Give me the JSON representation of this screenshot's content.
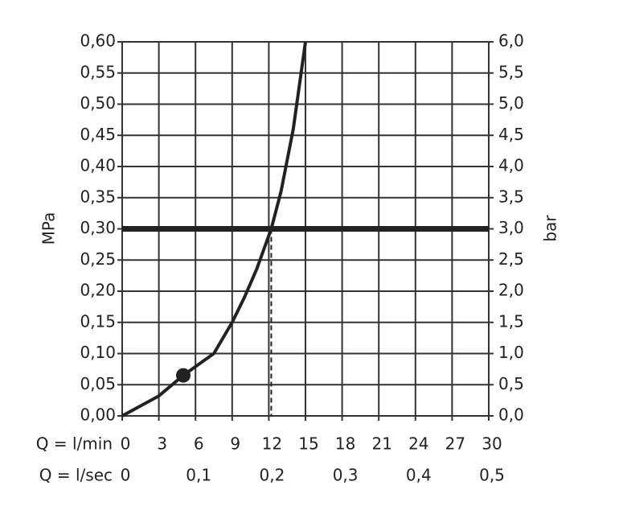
{
  "chart_data": {
    "type": "line",
    "ylabel": "MPa",
    "y2label": "bar",
    "xlabel": "Q = l/min",
    "x2label": "Q = l/sec",
    "xlim": [
      0,
      30
    ],
    "xticks": [
      0,
      3,
      6,
      9,
      12,
      15,
      18,
      21,
      24,
      27,
      30
    ],
    "x2lim": [
      0,
      0.5
    ],
    "x2ticks": [
      0,
      {
        "value": 0.1,
        "label": "0,1"
      },
      {
        "value": 0.2,
        "label": "0,2"
      },
      {
        "value": 0.3,
        "label": "0,3"
      },
      {
        "value": 0.4,
        "label": "0,4"
      },
      {
        "value": 0.5,
        "label": "0,5"
      }
    ],
    "ylim": [
      0,
      0.6
    ],
    "yticks": [
      {
        "value": 0,
        "label": "0,00"
      },
      {
        "value": 0.05,
        "label": "0,05"
      },
      {
        "value": 0.1,
        "label": "0,10"
      },
      {
        "value": 0.15,
        "label": "0,15"
      },
      {
        "value": 0.2,
        "label": "0,20"
      },
      {
        "value": 0.25,
        "label": "0,25"
      },
      {
        "value": 0.3,
        "label": "0,30"
      },
      {
        "value": 0.35,
        "label": "0,35"
      },
      {
        "value": 0.4,
        "label": "0,40"
      },
      {
        "value": 0.45,
        "label": "0,45"
      },
      {
        "value": 0.5,
        "label": "0,50"
      },
      {
        "value": 0.55,
        "label": "0,55"
      },
      {
        "value": 0.6,
        "label": "0,60"
      }
    ],
    "y2lim": [
      0,
      6
    ],
    "y2ticks": [
      {
        "value": 0,
        "label": "0,0"
      },
      {
        "value": 0.5,
        "label": "0,5"
      },
      {
        "value": 1,
        "label": "1,0"
      },
      {
        "value": 1.5,
        "label": "1,5"
      },
      {
        "value": 2,
        "label": "2,0"
      },
      {
        "value": 2.5,
        "label": "2,5"
      },
      {
        "value": 3,
        "label": "3,0"
      },
      {
        "value": 3.5,
        "label": "3,5"
      },
      {
        "value": 4,
        "label": "4,0"
      },
      {
        "value": 4.5,
        "label": "4,5"
      },
      {
        "value": 5,
        "label": "5,0"
      },
      {
        "value": 5.5,
        "label": "5,5"
      },
      {
        "value": 6,
        "label": "6,0"
      }
    ],
    "grid": true,
    "series": [
      {
        "color": "#222222",
        "x": [
          0,
          3,
          5,
          7.5,
          9,
          10,
          11,
          12.2,
          13,
          14,
          15
        ],
        "values": [
          0,
          0.032,
          0.065,
          0.1,
          0.15,
          0.19,
          0.235,
          0.3,
          0.36,
          0.46,
          0.6
        ]
      }
    ],
    "marker": {
      "x": 5,
      "y": 0.065
    },
    "hline": 0.3,
    "vline": 12.2
  }
}
